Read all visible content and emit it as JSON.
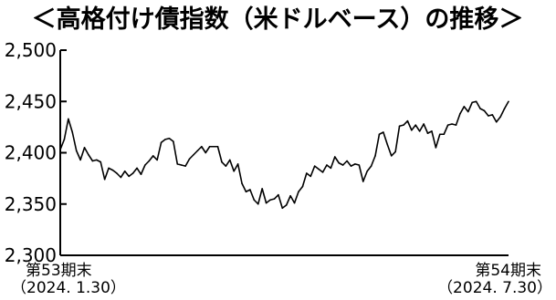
{
  "chart_data": {
    "type": "line",
    "title": "＜高格付け債指数（米ドルベース）の推移＞",
    "xlabel": "",
    "ylabel": "",
    "ylim": [
      2300,
      2500
    ],
    "yticks": [
      "2,500",
      "2,450",
      "2,400",
      "2,350",
      "2,300"
    ],
    "ytick_values": [
      2500,
      2450,
      2400,
      2350,
      2300
    ],
    "grid": false,
    "legend": "none",
    "x_start_label": [
      "第53期末",
      "（2024. 1.30）"
    ],
    "x_end_label": [
      "第54期末",
      "（2024. 7.30）"
    ],
    "series": [
      {
        "values": [
          2403,
          2413,
          2433,
          2420,
          2402,
          2393,
          2405,
          2398,
          2392,
          2393,
          2391,
          2374,
          2385,
          2383,
          2380,
          2376,
          2382,
          2377,
          2380,
          2385,
          2379,
          2388,
          2392,
          2397,
          2393,
          2410,
          2413,
          2414,
          2411,
          2389,
          2388,
          2387,
          2394,
          2398,
          2402,
          2406,
          2400,
          2406,
          2406,
          2406,
          2391,
          2387,
          2393,
          2382,
          2389,
          2370,
          2362,
          2364,
          2354,
          2350,
          2365,
          2351,
          2354,
          2355,
          2359,
          2346,
          2349,
          2358,
          2351,
          2362,
          2367,
          2380,
          2377,
          2387,
          2384,
          2381,
          2388,
          2385,
          2396,
          2390,
          2388,
          2392,
          2387,
          2389,
          2388,
          2372,
          2382,
          2387,
          2397,
          2418,
          2420,
          2408,
          2397,
          2401,
          2426,
          2427,
          2431,
          2422,
          2427,
          2421,
          2428,
          2419,
          2421,
          2405,
          2418,
          2418,
          2427,
          2428,
          2427,
          2438,
          2445,
          2440,
          2449,
          2450,
          2443,
          2441,
          2436,
          2437,
          2430,
          2435,
          2443,
          2450
        ]
      }
    ]
  }
}
